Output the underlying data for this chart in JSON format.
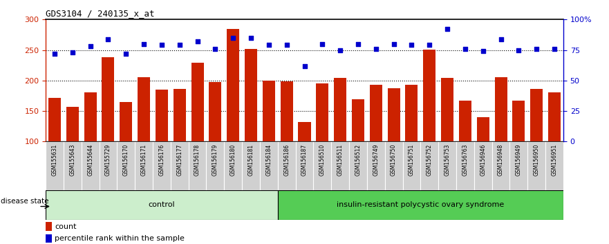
{
  "title": "GDS3104 / 240135_x_at",
  "samples": [
    "GSM155631",
    "GSM155643",
    "GSM155644",
    "GSM155729",
    "GSM156170",
    "GSM156171",
    "GSM156176",
    "GSM156177",
    "GSM156178",
    "GSM156179",
    "GSM156180",
    "GSM156181",
    "GSM156184",
    "GSM156186",
    "GSM156187",
    "GSM156510",
    "GSM156511",
    "GSM156512",
    "GSM156749",
    "GSM156750",
    "GSM156751",
    "GSM156752",
    "GSM156753",
    "GSM156763",
    "GSM156946",
    "GSM156948",
    "GSM156949",
    "GSM156950",
    "GSM156951"
  ],
  "bar_values": [
    172,
    157,
    181,
    238,
    165,
    206,
    185,
    186,
    229,
    197,
    285,
    252,
    200,
    199,
    132,
    195,
    204,
    169,
    193,
    187,
    193,
    251,
    204,
    167,
    140,
    205,
    167,
    186,
    181
  ],
  "dot_pct": [
    72,
    73,
    78,
    84,
    72,
    80,
    79,
    79,
    82,
    76,
    85,
    85,
    79,
    79,
    62,
    80,
    75,
    80,
    76,
    80,
    79,
    79,
    92,
    76,
    74,
    84,
    75,
    76,
    76
  ],
  "bar_color": "#cc2200",
  "dot_color": "#0000cc",
  "ylim_left": [
    100,
    300
  ],
  "ylim_right": [
    0,
    100
  ],
  "yticks_left": [
    100,
    150,
    200,
    250,
    300
  ],
  "yticks_right": [
    0,
    25,
    50,
    75,
    100
  ],
  "ytick_labels_right": [
    "0",
    "25",
    "50",
    "75",
    "100%"
  ],
  "grid_values": [
    150,
    200,
    250
  ],
  "control_count": 13,
  "control_label": "control",
  "disease_label": "insulin-resistant polycystic ovary syndrome",
  "disease_state_label": "disease state",
  "legend_bar": "count",
  "legend_dot": "percentile rank within the sample",
  "bg_color_xlabel": "#d0d0d0",
  "bg_color_control": "#cceecc",
  "bg_color_disease": "#55cc55"
}
